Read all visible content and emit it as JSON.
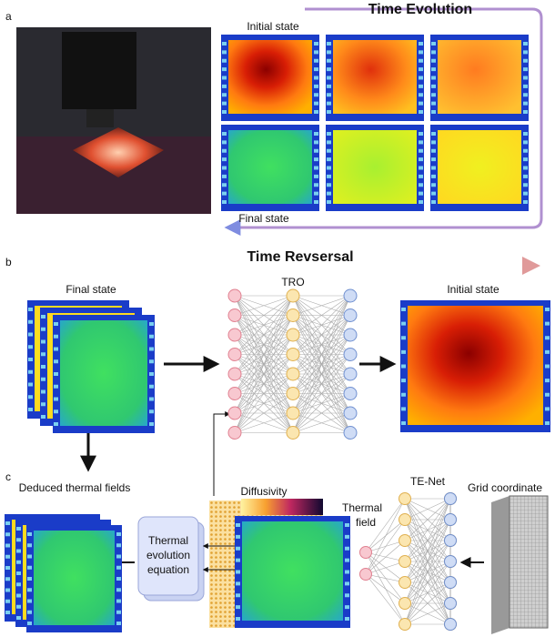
{
  "panels": {
    "a": {
      "label": "a",
      "title": "Time Evolution",
      "start": "Initial state",
      "end": "Final state"
    },
    "b": {
      "label": "b",
      "title": "Time Revsersal",
      "input": "Final state",
      "network": "TRO",
      "output": "Initial state"
    },
    "c": {
      "label": "c",
      "fields": "Deduced thermal fields",
      "equation": [
        "Thermal",
        "evolution",
        "equation"
      ],
      "diffusivity": "Diffusivity",
      "thermal_field": [
        "Thermal",
        "field"
      ],
      "network": "TE-Net",
      "coordinate": "Grid coordinate"
    }
  }
}
